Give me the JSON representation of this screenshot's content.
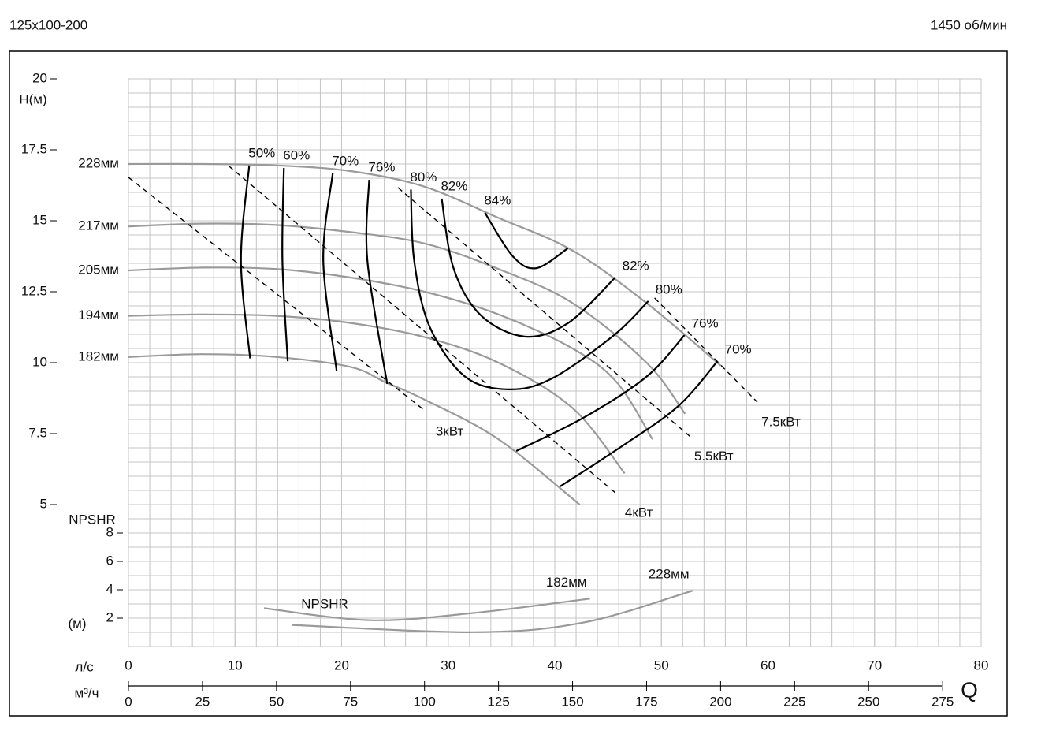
{
  "chart_data": {
    "type": "line",
    "title": "125x100-200",
    "subtitle": "1450 об/мин",
    "y_label": "H(м)",
    "y2_label": "NPSHR",
    "y2_unit": "(м)",
    "x_label": "м³/ч",
    "x2_label": "л/с",
    "q_label": "Q",
    "xlim": [
      0,
      288
    ],
    "xticks": [
      0,
      25,
      50,
      75,
      100,
      125,
      150,
      175,
      200,
      225,
      250,
      275
    ],
    "x2lim": [
      0,
      80
    ],
    "x2ticks": [
      0,
      10,
      20,
      30,
      40,
      50,
      60,
      70,
      80
    ],
    "ylim": [
      0,
      20
    ],
    "yticks": [
      5,
      7.5,
      10,
      12.5,
      15,
      17.5,
      20
    ],
    "y2lim": [
      0,
      40
    ],
    "y2ticks": [
      2,
      4,
      6,
      8
    ],
    "grid": true,
    "series": [
      {
        "name": "228мм",
        "color": "#9a9a9a",
        "x": [
          0,
          25,
          50,
          75,
          100,
          125,
          150,
          175,
          200
        ],
        "values": [
          17.0,
          17.0,
          16.95,
          16.75,
          16.2,
          15.1,
          13.95,
          12.1,
          9.9
        ]
      },
      {
        "name": "217мм",
        "color": "#9a9a9a",
        "x": [
          0,
          25,
          50,
          75,
          100,
          125,
          150,
          175,
          188
        ],
        "values": [
          14.8,
          14.9,
          14.85,
          14.6,
          14.2,
          13.3,
          12.1,
          10.0,
          8.2
        ]
      },
      {
        "name": "205мм",
        "color": "#9a9a9a",
        "x": [
          0,
          25,
          50,
          75,
          100,
          125,
          150,
          165,
          177
        ],
        "values": [
          13.25,
          13.35,
          13.3,
          13.0,
          12.5,
          11.7,
          10.5,
          9.3,
          7.3
        ]
      },
      {
        "name": "194мм",
        "color": "#9a9a9a",
        "x": [
          0,
          25,
          50,
          75,
          100,
          125,
          150,
          167.6
        ],
        "values": [
          11.65,
          11.7,
          11.65,
          11.4,
          10.9,
          10.0,
          8.4,
          6.1
        ]
      },
      {
        "name": "182мм",
        "color": "#9a9a9a",
        "x": [
          0,
          25,
          50,
          75,
          87,
          100,
          125,
          152.4
        ],
        "values": [
          10.2,
          10.3,
          10.2,
          9.85,
          9.3,
          8.7,
          7.3,
          5.0
        ]
      },
      {
        "name": "50%",
        "color": "#000000",
        "x": [
          40.8,
          38,
          41.1
        ],
        "values": [
          16.95,
          13.6,
          10.15
        ]
      },
      {
        "name": "60%",
        "color": "#000000",
        "x": [
          52.5,
          52,
          53.8
        ],
        "values": [
          16.86,
          13.6,
          10.05
        ]
      },
      {
        "name": "70%",
        "color": "#000000",
        "x": [
          69,
          65.8,
          70.3
        ],
        "values": [
          16.67,
          13.6,
          9.72
        ]
      },
      {
        "name": "76%",
        "color": "#000000",
        "x": [
          81.3,
          80.7,
          87.4
        ],
        "values": [
          16.44,
          13.6,
          9.25
        ]
      },
      {
        "name": "80%",
        "color": "#000000",
        "x": [
          95.4,
          96.5,
          101.8,
          113.8,
          128.4,
          143,
          164,
          175.6
        ],
        "values": [
          16.1,
          13.6,
          11.25,
          9.5,
          9.06,
          9.44,
          10.97,
          12.17
        ]
      },
      {
        "name": "82%",
        "color": "#000000",
        "x": [
          105.8,
          109.8,
          119,
          133.8,
          148.4,
          164.4
        ],
        "values": [
          15.78,
          13.33,
          11.67,
          10.92,
          11.39,
          13.0
        ]
      },
      {
        "name": "84%",
        "color": "#000000",
        "x": [
          120.4,
          129.8,
          137.8,
          148.4
        ],
        "values": [
          15.28,
          13.75,
          13.33,
          14.03
        ]
      },
      {
        "name": "76%",
        "color": "#000000",
        "x": [
          131,
          153.7,
          174.9,
          187.8
        ],
        "values": [
          6.89,
          8.06,
          9.5,
          10.97
        ]
      },
      {
        "name": "70%",
        "color": "#000000",
        "x": [
          145.8,
          167,
          185.7,
          199
        ],
        "values": [
          5.64,
          7.08,
          8.47,
          10.06
        ]
      },
      {
        "name": "3кВт",
        "color": "#000000",
        "dash": true,
        "x": [
          0,
          100.5
        ],
        "values": [
          16.53,
          8.28
        ]
      },
      {
        "name": "4кВт",
        "color": "#000000",
        "dash": true,
        "x": [
          33.8,
          164.4
        ],
        "values": [
          16.94,
          5.42
        ]
      },
      {
        "name": "5.5кВт",
        "color": "#000000",
        "dash": true,
        "x": [
          91,
          189.7
        ],
        "values": [
          16.17,
          7.4
        ]
      },
      {
        "name": "7.5кВт",
        "color": "#000000",
        "dash": true,
        "x": [
          177.7,
          212.4
        ],
        "values": [
          12.28,
          8.61
        ]
      },
      {
        "name": "182мм",
        "color": "#9a9a9a",
        "axis": "y2",
        "x": [
          45.8,
          81.8,
          116.4,
          155.9
        ],
        "values": [
          2.7,
          1.85,
          2.36,
          3.37
        ]
      },
      {
        "name": "228мм",
        "color": "#9a9a9a",
        "axis": "y2",
        "x": [
          55.2,
          116.4,
          153.7,
          190.5
        ],
        "values": [
          1.52,
          1.01,
          1.69,
          3.93
        ]
      }
    ]
  }
}
